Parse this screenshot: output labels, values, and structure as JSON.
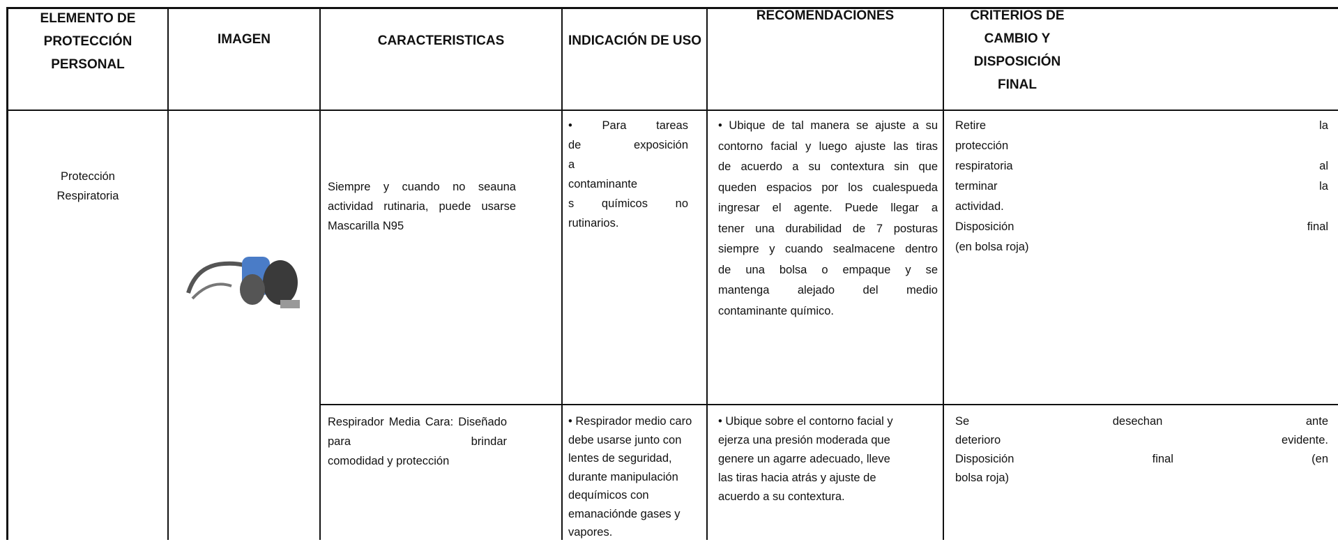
{
  "header": [
    [
      "ELEMENTO DE",
      "PROTECCIÓN",
      "PERSONAL"
    ],
    [
      "IMAGEN"
    ],
    [
      "CARACTERISTICAS"
    ],
    [
      "INDICACIÓN DE USO"
    ],
    [
      "RECOMENDACIONES"
    ],
    [
      "CRITERIOS DE",
      "CAMBIO Y",
      "DISPOSICIÓN",
      "FINAL"
    ]
  ],
  "element": [
    "Protección",
    "Respiratoria"
  ],
  "items": [
    {
      "characteristics": [
        "Siempre y cuando no seauna",
        "actividad rutinaria, puede usarse",
        "Mascarilla N95"
      ],
      "indication": [
        "• Para tareas",
        "de exposición",
        "a",
        "contaminante",
        "s químicos no",
        "rutinarios."
      ],
      "recommendations": [
        "• Ubique de tal manera se ajuste a su",
        "contorno facial y luego ajuste las tiras",
        "de acuerdo a su contextura sin que",
        "queden espacios por los cualespueda",
        "ingresar el agente. Puede llegar a",
        "tener una durabilidad de 7 posturas",
        "siempre y cuando sealmacene dentro",
        "de una bolsa o empaque y se",
        "mantenga alejado del medio",
        "contaminante químico."
      ],
      "criteria": [
        "Retire la",
        "protección",
        "respiratoria al",
        "terminar la",
        "actividad.",
        "Disposición final",
        "(en bolsa roja)"
      ]
    },
    {
      "characteristics": [
        "Respirador Media Cara: Diseñado",
        "para brindar",
        "comodidad y protección"
      ],
      "indication": [
        "• Respirador medio caro",
        "debe usarse junto con",
        "lentes de seguridad,",
        "durante manipulación",
        "dequímicos con",
        "emanaciónde gases y",
        "vapores."
      ],
      "recommendations": [
        "• Ubique sobre el contorno facial y",
        "ejerza una presión moderada que",
        "genere un agarre adecuado, lleve",
        "las tiras hacia atrás y ajuste de",
        "acuerdo a su contextura."
      ],
      "criteria": [
        "Se desechan ante",
        "deterioro evidente.",
        "Disposición final (en",
        "bolsa roja)"
      ]
    }
  ]
}
